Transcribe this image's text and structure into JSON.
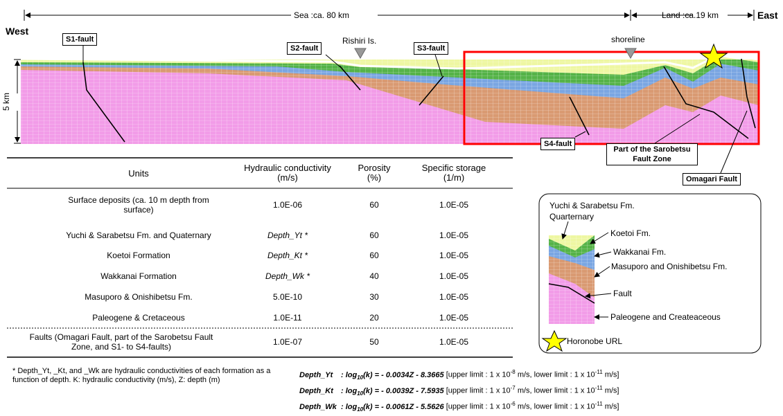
{
  "header": {
    "west": "West",
    "east": "East",
    "sea": "Sea :ca. 80 km",
    "land": "Land :ca.19 km",
    "scale": "5 km"
  },
  "labels": {
    "s1": "S1-fault",
    "s2": "S2-fault",
    "rishiri": "Rishiri Is.",
    "s3": "S3-fault",
    "shoreline": "shoreline",
    "s4": "S4-fault",
    "sarobetsu": "Part of the Sarobetsu Fault Zone",
    "omagari": "Omagari Fault"
  },
  "table": {
    "columns": [
      "Units",
      "Hydraulic conductivity (m/s)",
      "Porosity (%)",
      "Specific storage (1/m)"
    ],
    "rows": [
      [
        "Surface deposits (ca. 10 m depth from surface)",
        "1.0E-06",
        "60",
        "1.0E-05"
      ],
      [
        "Yuchi & Sarabetsu Fm. and Quaternary",
        "Depth_Yt *",
        "60",
        "1.0E-05"
      ],
      [
        "Koetoi Formation",
        "Depth_Kt *",
        "60",
        "1.0E-05"
      ],
      [
        "Wakkanai Formation",
        "Depth_Wk *",
        "40",
        "1.0E-05"
      ],
      [
        "Masuporo & Onishibetsu Fm.",
        "5.0E-10",
        "30",
        "1.0E-05"
      ],
      [
        "Paleogene & Cretaceous",
        "1.0E-11",
        "20",
        "1.0E-05"
      ],
      [
        "Faults (Omagari Fault, part of the Sarobetsu Fault Zone, and S1- to S4-faults)",
        "1.0E-07",
        "50",
        "1.0E-05"
      ]
    ]
  },
  "footnote": "* Depth_Yt, _Kt, and _Wk are hydraulic conductivities of each formation as a function of depth. K: hydraulic conductivity (m/s), Z: depth (m)",
  "equations": [
    {
      "name": "Depth_Yt",
      "colon": ":",
      "log": "log",
      "base": "10",
      "rhs": "(k) = - 0.0034Z - 8.3665",
      "upper": "[upper limit : 1 x 10",
      "upper_exp": "-8",
      "lower": "m/s, lower limit : 1 x 10",
      "lower_exp": "-11",
      "unit": "m/s]"
    },
    {
      "name": "Depth_Kt",
      "colon": ":",
      "log": "log",
      "base": "10",
      "rhs": "(k) = - 0.0039Z - 7.5935",
      "upper": "[upper limit : 1 x 10",
      "upper_exp": "-7",
      "lower": "m/s, lower limit : 1 x 10",
      "lower_exp": "-11",
      "unit": "m/s]"
    },
    {
      "name": "Depth_Wk",
      "colon": ":",
      "log": "log",
      "base": "10",
      "rhs": "(k) = - 0.0061Z - 5.5626",
      "upper": "[upper limit : 1 x 10",
      "upper_exp": "-6",
      "lower": "m/s, lower limit : 1 x 10",
      "lower_exp": "-11",
      "unit": "m/s]"
    }
  ],
  "legend": {
    "items": [
      "Yuchi & Sarabetsu Fm.",
      "Quarternary",
      "Koetoi Fm.",
      "Wakkanai Fm.",
      "Masuporo and Onishibetsu Fm.",
      "Fault",
      "Paleogene and Createaceous"
    ],
    "url": "Horonobe URL"
  }
}
